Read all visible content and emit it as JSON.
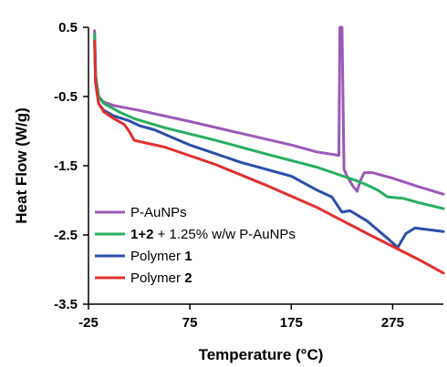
{
  "chart_data": {
    "type": "line",
    "xlabel": "Temperature (°C)",
    "ylabel": "Heat Flow (W/g)",
    "xlim": [
      -25,
      325
    ],
    "ylim": [
      -3.5,
      0.5
    ],
    "xticks": [
      -25,
      75,
      175,
      275
    ],
    "xtick_labels": [
      "-25",
      "75",
      "175",
      "275"
    ],
    "yticks": [
      0.5,
      -0.5,
      -1.5,
      -2.5,
      -3.5
    ],
    "ytick_labels": [
      "0.5",
      "-0.5",
      "-1.5",
      "-2.5",
      "-3.5"
    ],
    "grid": false,
    "legend_position": "bottom-left",
    "series": [
      {
        "name": "P-AuNPs",
        "legend_parts": [
          {
            "text": "P-AuNPs",
            "bold": false
          }
        ],
        "color": "#9b59b6",
        "points": [
          [
            -19,
            0.45
          ],
          [
            -18,
            -0.2
          ],
          [
            -15,
            -0.5
          ],
          [
            -10,
            -0.58
          ],
          [
            0,
            -0.63
          ],
          [
            25,
            -0.7
          ],
          [
            75,
            -0.86
          ],
          [
            125,
            -1.03
          ],
          [
            175,
            -1.2
          ],
          [
            200,
            -1.3
          ],
          [
            222,
            -1.35
          ],
          [
            223,
            0.5
          ],
          [
            225,
            0.5
          ],
          [
            227,
            -1.55
          ],
          [
            230,
            -1.65
          ],
          [
            236,
            -1.8
          ],
          [
            240,
            -1.87
          ],
          [
            243,
            -1.72
          ],
          [
            247,
            -1.6
          ],
          [
            255,
            -1.6
          ],
          [
            275,
            -1.68
          ],
          [
            300,
            -1.8
          ],
          [
            325,
            -1.91
          ]
        ]
      },
      {
        "name": "1+2 + 1.25% w/w P-AuNPs",
        "legend_parts": [
          {
            "text": "1+2",
            "bold": true
          },
          {
            "text": " + 1.25% w/w P-AuNPs",
            "bold": false
          }
        ],
        "color": "#27ae60",
        "points": [
          [
            -19,
            0.4
          ],
          [
            -18,
            -0.2
          ],
          [
            -15,
            -0.5
          ],
          [
            -10,
            -0.6
          ],
          [
            5,
            -0.72
          ],
          [
            20,
            -0.82
          ],
          [
            50,
            -0.95
          ],
          [
            100,
            -1.13
          ],
          [
            150,
            -1.33
          ],
          [
            200,
            -1.52
          ],
          [
            240,
            -1.72
          ],
          [
            250,
            -1.78
          ],
          [
            260,
            -1.85
          ],
          [
            270,
            -1.95
          ],
          [
            285,
            -1.97
          ],
          [
            300,
            -2.03
          ],
          [
            325,
            -2.12
          ]
        ]
      },
      {
        "name": "Polymer 1",
        "legend_parts": [
          {
            "text": "Polymer ",
            "bold": false
          },
          {
            "text": "1",
            "bold": true
          }
        ],
        "color": "#2c4ea8",
        "points": [
          [
            -19,
            0.3
          ],
          [
            -18,
            -0.3
          ],
          [
            -15,
            -0.6
          ],
          [
            -10,
            -0.7
          ],
          [
            0,
            -0.78
          ],
          [
            15,
            -0.85
          ],
          [
            25,
            -0.92
          ],
          [
            40,
            -0.98
          ],
          [
            75,
            -1.2
          ],
          [
            125,
            -1.45
          ],
          [
            175,
            -1.65
          ],
          [
            200,
            -1.85
          ],
          [
            215,
            -1.95
          ],
          [
            225,
            -2.17
          ],
          [
            233,
            -2.15
          ],
          [
            250,
            -2.3
          ],
          [
            270,
            -2.55
          ],
          [
            280,
            -2.68
          ],
          [
            288,
            -2.48
          ],
          [
            297,
            -2.4
          ],
          [
            325,
            -2.45
          ]
        ]
      },
      {
        "name": "Polymer 2",
        "legend_parts": [
          {
            "text": "Polymer ",
            "bold": false
          },
          {
            "text": "2",
            "bold": true
          }
        ],
        "color": "#e03030",
        "points": [
          [
            -19,
            0.3
          ],
          [
            -18,
            -0.3
          ],
          [
            -15,
            -0.6
          ],
          [
            -10,
            -0.72
          ],
          [
            0,
            -0.82
          ],
          [
            10,
            -0.9
          ],
          [
            15,
            -1.0
          ],
          [
            20,
            -1.13
          ],
          [
            25,
            -1.15
          ],
          [
            50,
            -1.23
          ],
          [
            100,
            -1.48
          ],
          [
            150,
            -1.78
          ],
          [
            200,
            -2.1
          ],
          [
            250,
            -2.48
          ],
          [
            300,
            -2.85
          ],
          [
            325,
            -3.05
          ]
        ]
      }
    ]
  }
}
